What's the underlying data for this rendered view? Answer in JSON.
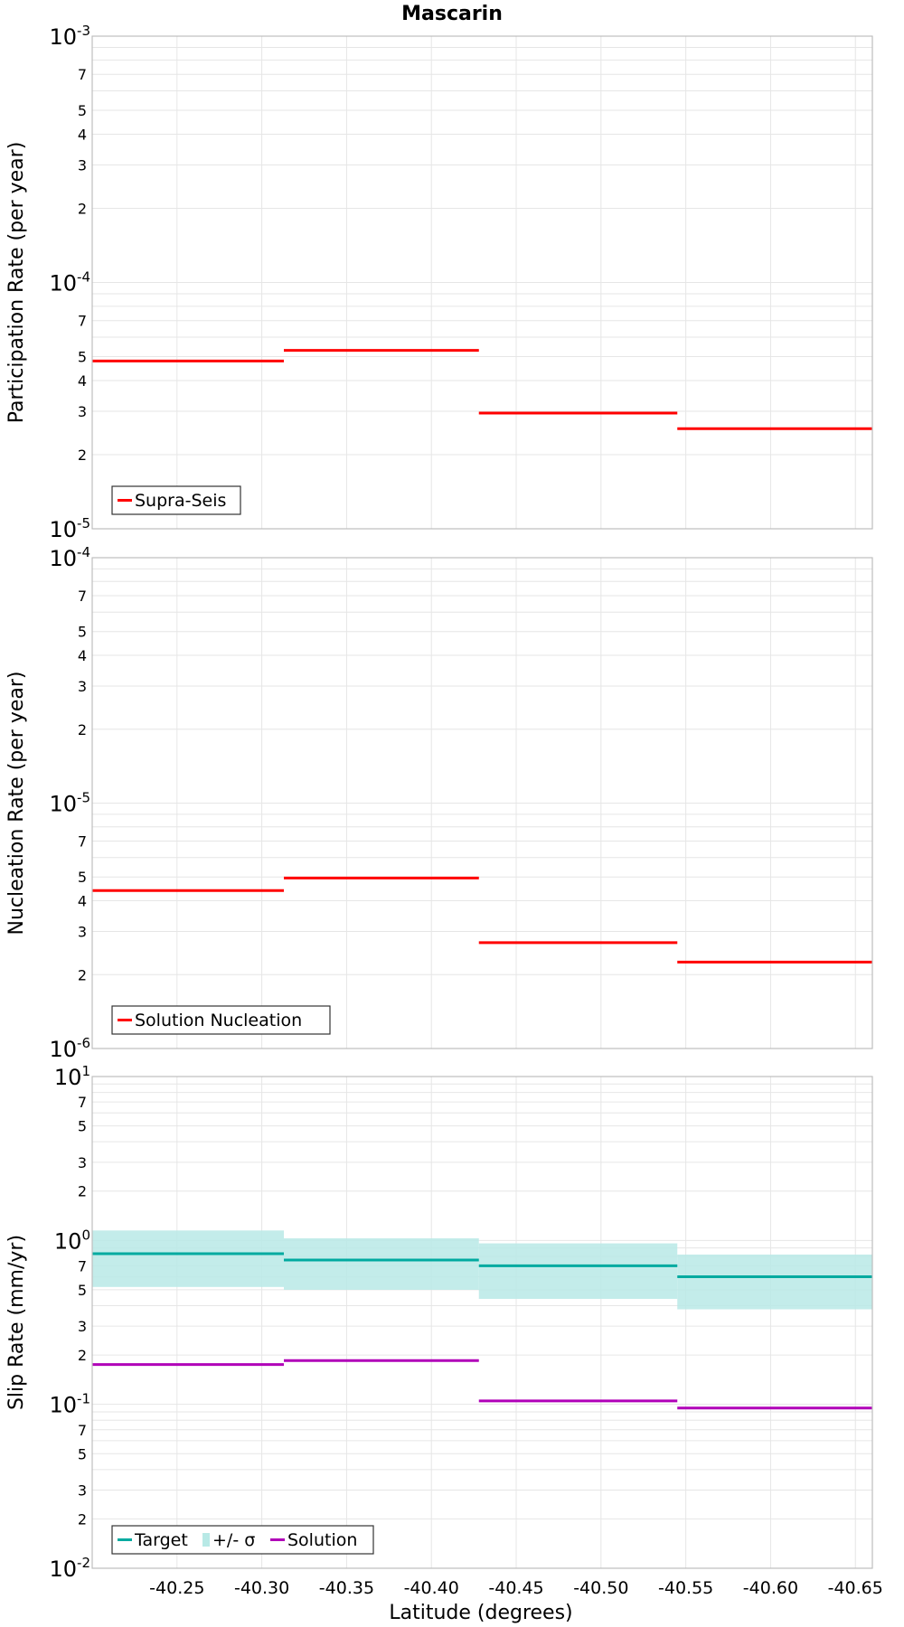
{
  "title": "Mascarin",
  "xlabel": "Latitude (degrees)",
  "colors": {
    "supra": "#ff0000",
    "nucleation": "#ff0000",
    "target": "#00aaa0",
    "band": "#b8e9e6",
    "solution": "#b000b8"
  },
  "chart_data": [
    {
      "type": "line",
      "name": "participation",
      "ylabel": "Participation Rate (per year)",
      "yscale": "log",
      "ylim": [
        1e-05,
        0.001
      ],
      "xlim": [
        -40.2,
        -40.66
      ],
      "xticks": [
        "-40.25",
        "-40.30",
        "-40.35",
        "-40.40",
        "-40.45",
        "-40.50",
        "-40.55",
        "-40.60",
        "-40.65"
      ],
      "legend_position": "bottom-left",
      "series": [
        {
          "name": "Supra-Seis",
          "segments": [
            {
              "x": [
                -40.2,
                -40.313
              ],
              "y": 4.8e-05
            },
            {
              "x": [
                -40.313,
                -40.428
              ],
              "y": 5.3e-05
            },
            {
              "x": [
                -40.428,
                -40.545
              ],
              "y": 2.95e-05
            },
            {
              "x": [
                -40.545,
                -40.66
              ],
              "y": 2.55e-05
            }
          ]
        }
      ]
    },
    {
      "type": "line",
      "name": "nucleation",
      "ylabel": "Nucleation Rate (per year)",
      "yscale": "log",
      "ylim": [
        1e-06,
        0.0001
      ],
      "xlim": [
        -40.2,
        -40.66
      ],
      "legend_position": "bottom-left",
      "series": [
        {
          "name": "Solution Nucleation",
          "segments": [
            {
              "x": [
                -40.2,
                -40.313
              ],
              "y": 4.4e-06
            },
            {
              "x": [
                -40.313,
                -40.428
              ],
              "y": 4.95e-06
            },
            {
              "x": [
                -40.428,
                -40.545
              ],
              "y": 2.7e-06
            },
            {
              "x": [
                -40.545,
                -40.66
              ],
              "y": 2.25e-06
            }
          ]
        }
      ]
    },
    {
      "type": "line",
      "name": "slip",
      "ylabel": "Slip Rate (mm/yr)",
      "yscale": "log",
      "ylim": [
        0.01,
        10
      ],
      "xlim": [
        -40.2,
        -40.66
      ],
      "legend_position": "bottom-left",
      "series": [
        {
          "name": "Target",
          "segments": [
            {
              "x": [
                -40.2,
                -40.313
              ],
              "y": 0.83
            },
            {
              "x": [
                -40.313,
                -40.428
              ],
              "y": 0.76
            },
            {
              "x": [
                -40.428,
                -40.545
              ],
              "y": 0.7
            },
            {
              "x": [
                -40.545,
                -40.66
              ],
              "y": 0.6
            }
          ]
        },
        {
          "name": "+/- σ",
          "segments": [
            {
              "x": [
                -40.2,
                -40.313
              ],
              "low": 0.52,
              "high": 1.15
            },
            {
              "x": [
                -40.313,
                -40.428
              ],
              "low": 0.5,
              "high": 1.03
            },
            {
              "x": [
                -40.428,
                -40.545
              ],
              "low": 0.44,
              "high": 0.96
            },
            {
              "x": [
                -40.545,
                -40.66
              ],
              "low": 0.38,
              "high": 0.82
            }
          ]
        },
        {
          "name": "Solution",
          "segments": [
            {
              "x": [
                -40.2,
                -40.313
              ],
              "y": 0.175
            },
            {
              "x": [
                -40.313,
                -40.428
              ],
              "y": 0.185
            },
            {
              "x": [
                -40.428,
                -40.545
              ],
              "y": 0.105
            },
            {
              "x": [
                -40.545,
                -40.66
              ],
              "y": 0.095
            }
          ]
        }
      ]
    }
  ]
}
